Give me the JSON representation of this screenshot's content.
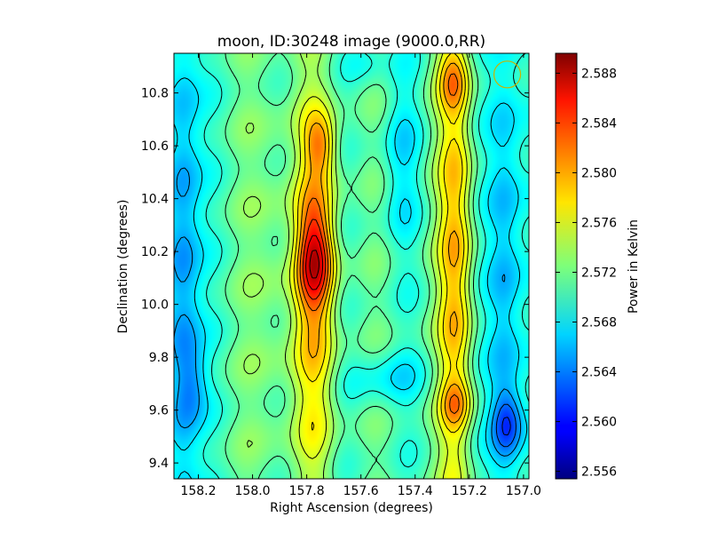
{
  "chart_data": {
    "type": "heatmap",
    "title": "moon, ID:30248 image (9000.0,RR)",
    "xlabel": "Right Ascension (degrees)",
    "ylabel": "Declination (degrees)",
    "colorbar_label": "Power in Kelvin",
    "colormap": "jet",
    "contours": true,
    "x_reversed": true,
    "xlim": [
      158.29,
      156.98
    ],
    "ylim": [
      9.34,
      10.95
    ],
    "clim": [
      2.5554,
      2.5896
    ],
    "x_ticks": [
      158.2,
      158.0,
      157.8,
      157.6,
      157.4,
      157.2,
      157.0
    ],
    "x_tick_labels": [
      "158.2",
      "158.0",
      "157.8",
      "157.6",
      "157.4",
      "157.2",
      "157.0"
    ],
    "y_ticks": [
      9.4,
      9.6,
      9.8,
      10.0,
      10.2,
      10.4,
      10.6,
      10.8
    ],
    "y_tick_labels": [
      "9.4",
      "9.6",
      "9.8",
      "10.0",
      "10.2",
      "10.4",
      "10.6",
      "10.8"
    ],
    "colorbar_ticks": [
      2.556,
      2.56,
      2.564,
      2.568,
      2.572,
      2.576,
      2.58,
      2.584,
      2.588
    ],
    "colorbar_tick_labels": [
      "2.556",
      "2.560",
      "2.564",
      "2.568",
      "2.572",
      "2.576",
      "2.580",
      "2.584",
      "2.588"
    ],
    "beam_marker": {
      "ra": 157.06,
      "dec": 10.87,
      "color": "#c9b400"
    },
    "features": [
      {
        "kind": "ridge",
        "ra": 157.77,
        "dec": 10.05,
        "amp": 0.007,
        "sra": 0.06,
        "sdec": 0.55
      },
      {
        "kind": "peak",
        "ra": 157.77,
        "dec": 10.18,
        "amp": 0.009,
        "sra": 0.045,
        "sdec": 0.14
      },
      {
        "kind": "peak",
        "ra": 157.75,
        "dec": 10.6,
        "amp": 0.006,
        "sra": 0.04,
        "sdec": 0.08
      },
      {
        "kind": "ridge",
        "ra": 157.25,
        "dec": 10.15,
        "amp": 0.008,
        "sra": 0.045,
        "sdec": 0.75
      },
      {
        "kind": "peak",
        "ra": 157.26,
        "dec": 10.85,
        "amp": 0.005,
        "sra": 0.04,
        "sdec": 0.08
      },
      {
        "kind": "peak",
        "ra": 157.25,
        "dec": 9.62,
        "amp": 0.004,
        "sra": 0.04,
        "sdec": 0.06
      },
      {
        "kind": "ridge",
        "ra": 157.93,
        "dec": 10.1,
        "amp": 0.002,
        "sra": 0.06,
        "sdec": 0.7
      },
      {
        "kind": "trough",
        "ra": 157.07,
        "dec": 10.1,
        "amp": -0.006,
        "sra": 0.05,
        "sdec": 0.9
      },
      {
        "kind": "trough",
        "ra": 157.06,
        "dec": 9.55,
        "amp": -0.006,
        "sra": 0.04,
        "sdec": 0.09
      },
      {
        "kind": "trough",
        "ra": 158.26,
        "dec": 10.1,
        "amp": -0.007,
        "sra": 0.05,
        "sdec": 0.9
      },
      {
        "kind": "trough",
        "ra": 158.22,
        "dec": 9.7,
        "amp": -0.003,
        "sra": 0.04,
        "sdec": 0.1
      },
      {
        "kind": "trough",
        "ra": 157.45,
        "dec": 10.55,
        "amp": -0.003,
        "sra": 0.05,
        "sdec": 0.25
      },
      {
        "kind": "trough",
        "ra": 157.5,
        "dec": 9.72,
        "amp": -0.003,
        "sra": 0.1,
        "sdec": 0.08
      },
      {
        "kind": "trough",
        "ra": 157.58,
        "dec": 10.92,
        "amp": -0.002,
        "sra": 0.05,
        "sdec": 0.06
      }
    ],
    "baseline": 2.571
  }
}
